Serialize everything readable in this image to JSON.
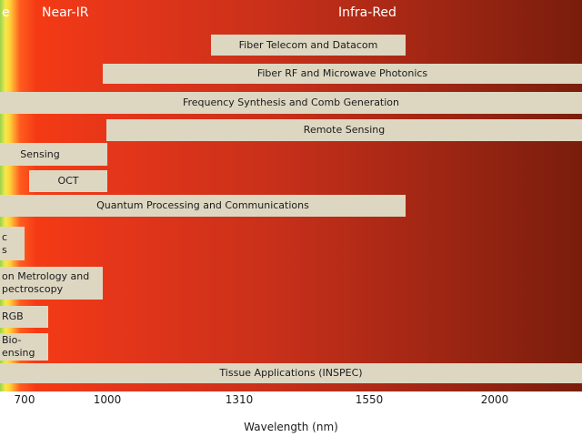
{
  "regions": [
    "e",
    "Near-IR",
    "Infra-Red"
  ],
  "bars": [
    {
      "lines": [
        "Fiber Telecom and Datacom"
      ]
    },
    {
      "lines": [
        "Fiber RF and Microwave Photonics"
      ]
    },
    {
      "lines": [
        "Frequency Synthesis and Comb Generation"
      ]
    },
    {
      "lines": [
        "Remote Sensing"
      ]
    },
    {
      "lines": [
        "Sensing"
      ]
    },
    {
      "lines": [
        "OCT"
      ]
    },
    {
      "lines": [
        "Quantum Processing and Communications"
      ]
    },
    {
      "lines": [
        "c",
        "s"
      ]
    },
    {
      "lines": [
        "on Metrology and",
        "pectroscopy"
      ]
    },
    {
      "lines": [
        "RGB"
      ]
    },
    {
      "lines": [
        "Bio-",
        "ensing"
      ]
    },
    {
      "lines": [
        "Tissue Applications (INSPEC)"
      ]
    }
  ],
  "axis": {
    "ticks": [
      "700",
      "1000",
      "1310",
      "1550",
      "2000"
    ],
    "label": "Wavelength (nm)"
  }
}
